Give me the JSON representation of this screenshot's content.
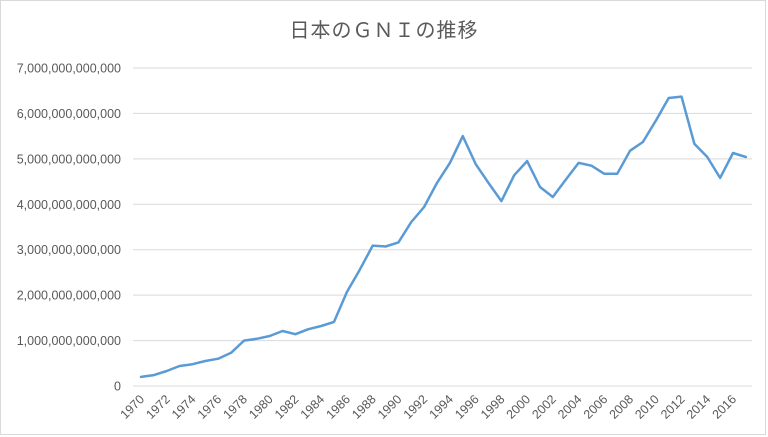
{
  "chart_data": {
    "type": "line",
    "title": "日本のＧＮＩの推移",
    "xlabel": "",
    "ylabel": "",
    "ylim": [
      0,
      7000000000000
    ],
    "yticks": [
      0,
      1000000000000,
      2000000000000,
      3000000000000,
      4000000000000,
      5000000000000,
      6000000000000,
      7000000000000
    ],
    "ytick_labels": [
      "0",
      "1,000,000,000,000",
      "2,000,000,000,000",
      "3,000,000,000,000",
      "4,000,000,000,000",
      "5,000,000,000,000",
      "6,000,000,000,000",
      "7,000,000,000,000"
    ],
    "xtick_labels": [
      "1970",
      "1972",
      "1974",
      "1976",
      "1978",
      "1980",
      "1982",
      "1984",
      "1986",
      "1988",
      "1990",
      "1992",
      "1994",
      "1996",
      "1998",
      "2000",
      "2002",
      "2004",
      "2006",
      "2008",
      "2010",
      "2012",
      "2014",
      "2016"
    ],
    "grid": true,
    "legend": null,
    "line_color": "#5b9bd5",
    "series": [
      {
        "name": "GNI",
        "x": [
          1970,
          1971,
          1972,
          1973,
          1974,
          1975,
          1976,
          1977,
          1978,
          1979,
          1980,
          1981,
          1982,
          1983,
          1984,
          1985,
          1986,
          1987,
          1988,
          1989,
          1990,
          1991,
          1992,
          1993,
          1994,
          1995,
          1996,
          1997,
          1998,
          1999,
          2000,
          2001,
          2002,
          2003,
          2004,
          2005,
          2006,
          2007,
          2008,
          2009,
          2010,
          2011,
          2012,
          2013,
          2014,
          2015,
          2016,
          2017
        ],
        "values": [
          200000000000,
          240000000000,
          330000000000,
          440000000000,
          480000000000,
          550000000000,
          600000000000,
          730000000000,
          1000000000000,
          1040000000000,
          1100000000000,
          1210000000000,
          1140000000000,
          1250000000000,
          1320000000000,
          1410000000000,
          2070000000000,
          2560000000000,
          3090000000000,
          3070000000000,
          3160000000000,
          3610000000000,
          3940000000000,
          4470000000000,
          4910000000000,
          5500000000000,
          4890000000000,
          4470000000000,
          4070000000000,
          4640000000000,
          4950000000000,
          4380000000000,
          4160000000000,
          4540000000000,
          4910000000000,
          4850000000000,
          4670000000000,
          4670000000000,
          5180000000000,
          5370000000000,
          5840000000000,
          6340000000000,
          6370000000000,
          5330000000000,
          5040000000000,
          4580000000000,
          5130000000000,
          5040000000000
        ]
      }
    ]
  }
}
